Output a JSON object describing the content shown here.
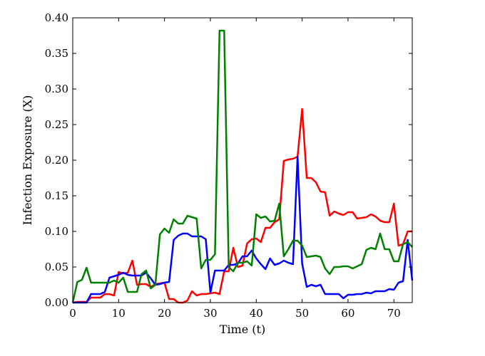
{
  "chart_data": {
    "type": "line",
    "xlabel": "Time (t)",
    "ylabel": "Infection Exposure (X)",
    "xlim": [
      0,
      74
    ],
    "ylim": [
      0,
      0.4
    ],
    "xticks": [
      0,
      10,
      20,
      30,
      40,
      50,
      60,
      70
    ],
    "xtick_labels": [
      "0",
      "10",
      "20",
      "30",
      "40",
      "50",
      "60",
      "70"
    ],
    "yticks": [
      0,
      0.05,
      0.1,
      0.15,
      0.2,
      0.25,
      0.3,
      0.35,
      0.4
    ],
    "ytick_labels": [
      "0.00",
      "0.05",
      "0.10",
      "0.15",
      "0.20",
      "0.25",
      "0.30",
      "0.35",
      "0.40"
    ],
    "grid": false,
    "series": [
      {
        "color": "#ff0000",
        "points": [
          [
            0,
            0
          ],
          [
            1,
            0.001
          ],
          [
            2,
            0.001
          ],
          [
            3,
            0.001
          ],
          [
            4,
            0.007
          ],
          [
            5,
            0.007
          ],
          [
            6,
            0.007
          ],
          [
            7,
            0.012
          ],
          [
            8,
            0.012
          ],
          [
            9,
            0.01
          ],
          [
            10,
            0.043
          ],
          [
            11,
            0.041
          ],
          [
            12,
            0.042
          ],
          [
            13,
            0.059
          ],
          [
            14,
            0.025
          ],
          [
            15,
            0.026
          ],
          [
            16,
            0.026
          ],
          [
            17,
            0.022
          ],
          [
            18,
            0.026
          ],
          [
            19,
            0.027
          ],
          [
            20,
            0.028
          ],
          [
            21,
            0.005
          ],
          [
            22,
            0.005
          ],
          [
            23,
            0.0
          ],
          [
            24,
            0.0
          ],
          [
            25,
            0.003
          ],
          [
            26,
            0.016
          ],
          [
            27,
            0.01
          ],
          [
            28,
            0.012
          ],
          [
            29,
            0.012
          ],
          [
            30,
            0.013
          ],
          [
            31,
            0.014
          ],
          [
            32,
            0.012
          ],
          [
            33,
            0.044
          ],
          [
            34,
            0.044
          ],
          [
            35,
            0.077
          ],
          [
            36,
            0.05
          ],
          [
            37,
            0.052
          ],
          [
            38,
            0.083
          ],
          [
            39,
            0.089
          ],
          [
            40,
            0.09
          ],
          [
            41,
            0.085
          ],
          [
            42,
            0.105
          ],
          [
            43,
            0.105
          ],
          [
            44,
            0.113
          ],
          [
            45,
            0.117
          ],
          [
            46,
            0.199
          ],
          [
            47,
            0.201
          ],
          [
            48,
            0.202
          ],
          [
            49,
            0.205
          ],
          [
            50,
            0.272
          ],
          [
            51,
            0.175
          ],
          [
            52,
            0.175
          ],
          [
            53,
            0.169
          ],
          [
            54,
            0.156
          ],
          [
            55,
            0.155
          ],
          [
            56,
            0.122
          ],
          [
            57,
            0.128
          ],
          [
            58,
            0.125
          ],
          [
            59,
            0.123
          ],
          [
            60,
            0.127
          ],
          [
            61,
            0.127
          ],
          [
            62,
            0.118
          ],
          [
            63,
            0.119
          ],
          [
            64,
            0.12
          ],
          [
            65,
            0.124
          ],
          [
            66,
            0.121
          ],
          [
            67,
            0.115
          ],
          [
            68,
            0.113
          ],
          [
            69,
            0.113
          ],
          [
            70,
            0.139
          ],
          [
            71,
            0.08
          ],
          [
            72,
            0.082
          ],
          [
            73,
            0.1
          ],
          [
            74,
            0.1
          ]
        ]
      },
      {
        "color": "#0000ff",
        "points": [
          [
            0,
            0
          ],
          [
            1,
            0
          ],
          [
            2,
            0
          ],
          [
            3,
            0
          ],
          [
            4,
            0.012
          ],
          [
            5,
            0.012
          ],
          [
            6,
            0.012
          ],
          [
            7,
            0.015
          ],
          [
            8,
            0.035
          ],
          [
            9,
            0.037
          ],
          [
            10,
            0.039
          ],
          [
            11,
            0.042
          ],
          [
            12,
            0.039
          ],
          [
            13,
            0.038
          ],
          [
            14,
            0.038
          ],
          [
            15,
            0.038
          ],
          [
            16,
            0.042
          ],
          [
            17,
            0.034
          ],
          [
            18,
            0.025
          ],
          [
            19,
            0.026
          ],
          [
            20,
            0.028
          ],
          [
            21,
            0.029
          ],
          [
            22,
            0.088
          ],
          [
            23,
            0.094
          ],
          [
            24,
            0.097
          ],
          [
            25,
            0.097
          ],
          [
            26,
            0.093
          ],
          [
            27,
            0.093
          ],
          [
            28,
            0.093
          ],
          [
            29,
            0.089
          ],
          [
            30,
            0.014
          ],
          [
            31,
            0.045
          ],
          [
            32,
            0.045
          ],
          [
            33,
            0.045
          ],
          [
            34,
            0.053
          ],
          [
            35,
            0.053
          ],
          [
            36,
            0.055
          ],
          [
            37,
            0.065
          ],
          [
            38,
            0.065
          ],
          [
            39,
            0.073
          ],
          [
            40,
            0.062
          ],
          [
            41,
            0.054
          ],
          [
            42,
            0.047
          ],
          [
            43,
            0.062
          ],
          [
            44,
            0.053
          ],
          [
            45,
            0.055
          ],
          [
            46,
            0.059
          ],
          [
            47,
            0.056
          ],
          [
            48,
            0.054
          ],
          [
            49,
            0.205
          ],
          [
            50,
            0.055
          ],
          [
            51,
            0.022
          ],
          [
            52,
            0.025
          ],
          [
            53,
            0.023
          ],
          [
            54,
            0.025
          ],
          [
            55,
            0.012
          ],
          [
            56,
            0.012
          ],
          [
            57,
            0.012
          ],
          [
            58,
            0.012
          ],
          [
            59,
            0.006
          ],
          [
            60,
            0.011
          ],
          [
            61,
            0.011
          ],
          [
            62,
            0.012
          ],
          [
            63,
            0.012
          ],
          [
            64,
            0.014
          ],
          [
            65,
            0.013
          ],
          [
            66,
            0.016
          ],
          [
            67,
            0.016
          ],
          [
            68,
            0.016
          ],
          [
            69,
            0.019
          ],
          [
            70,
            0.018
          ],
          [
            71,
            0.028
          ],
          [
            72,
            0.03
          ],
          [
            73,
            0.088
          ],
          [
            74,
            0.031
          ]
        ]
      },
      {
        "color": "#008000",
        "points": [
          [
            0,
            0
          ],
          [
            1,
            0.029
          ],
          [
            2,
            0.032
          ],
          [
            3,
            0.049
          ],
          [
            4,
            0.028
          ],
          [
            5,
            0.028
          ],
          [
            6,
            0.028
          ],
          [
            7,
            0.028
          ],
          [
            8,
            0.028
          ],
          [
            9,
            0.031
          ],
          [
            10,
            0.028
          ],
          [
            11,
            0.035
          ],
          [
            12,
            0.015
          ],
          [
            13,
            0.015
          ],
          [
            14,
            0.015
          ],
          [
            15,
            0.04
          ],
          [
            16,
            0.045
          ],
          [
            17,
            0.02
          ],
          [
            18,
            0.025
          ],
          [
            19,
            0.096
          ],
          [
            20,
            0.104
          ],
          [
            21,
            0.098
          ],
          [
            22,
            0.117
          ],
          [
            23,
            0.111
          ],
          [
            24,
            0.111
          ],
          [
            25,
            0.122
          ],
          [
            26,
            0.12
          ],
          [
            27,
            0.118
          ],
          [
            28,
            0.048
          ],
          [
            29,
            0.06
          ],
          [
            30,
            0.06
          ],
          [
            31,
            0.068
          ],
          [
            32,
            0.382
          ],
          [
            33,
            0.382
          ],
          [
            34,
            0.05
          ],
          [
            35,
            0.044
          ],
          [
            36,
            0.056
          ],
          [
            37,
            0.056
          ],
          [
            38,
            0.058
          ],
          [
            39,
            0.052
          ],
          [
            40,
            0.124
          ],
          [
            41,
            0.119
          ],
          [
            42,
            0.121
          ],
          [
            43,
            0.114
          ],
          [
            44,
            0.115
          ],
          [
            45,
            0.139
          ],
          [
            46,
            0.065
          ],
          [
            47,
            0.075
          ],
          [
            48,
            0.087
          ],
          [
            49,
            0.087
          ],
          [
            50,
            0.08
          ],
          [
            51,
            0.064
          ],
          [
            52,
            0.065
          ],
          [
            53,
            0.066
          ],
          [
            54,
            0.064
          ],
          [
            55,
            0.048
          ],
          [
            56,
            0.04
          ],
          [
            57,
            0.05
          ],
          [
            58,
            0.05
          ],
          [
            59,
            0.051
          ],
          [
            60,
            0.051
          ],
          [
            61,
            0.048
          ],
          [
            62,
            0.051
          ],
          [
            63,
            0.054
          ],
          [
            64,
            0.074
          ],
          [
            65,
            0.077
          ],
          [
            66,
            0.075
          ],
          [
            67,
            0.097
          ],
          [
            68,
            0.075
          ],
          [
            69,
            0.075
          ],
          [
            70,
            0.058
          ],
          [
            71,
            0.058
          ],
          [
            72,
            0.082
          ],
          [
            73,
            0.085
          ],
          [
            74,
            0.078
          ]
        ]
      }
    ]
  }
}
